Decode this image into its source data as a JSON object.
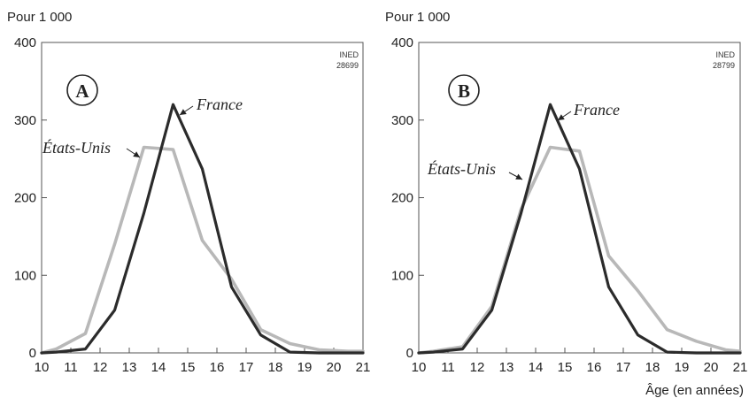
{
  "colors": {
    "france": "#2b2b2b",
    "etats_unis": "#b8b8b8",
    "axis": "#555555"
  },
  "chart_data": [
    {
      "type": "line",
      "panel_label": "A",
      "unit_label": "Pour 1 000",
      "xlabel": "",
      "source_label": "INED",
      "source_number": "28699",
      "x": [
        10,
        11,
        12,
        13,
        14,
        15,
        16,
        17,
        18,
        19,
        20,
        21
      ],
      "ylim": [
        0,
        400
      ],
      "yticks": [
        0,
        100,
        200,
        300,
        400
      ],
      "xticks": [
        10,
        11,
        12,
        13,
        14,
        15,
        16,
        17,
        18,
        19,
        20,
        21
      ],
      "series": [
        {
          "name": "États-Unis",
          "key": "etats_unis",
          "x": [
            10.0,
            10.5,
            11.5,
            12.5,
            13.5,
            14.5,
            15.5,
            16.5,
            17.5,
            18.5,
            19.5,
            20.5,
            21.0
          ],
          "values": [
            0,
            5,
            25,
            140,
            265,
            262,
            145,
            95,
            30,
            12,
            4,
            2,
            2
          ]
        },
        {
          "name": "France",
          "key": "france",
          "x": [
            10.0,
            10.5,
            11.5,
            12.5,
            13.5,
            14.5,
            15.5,
            16.5,
            17.5,
            18.5,
            19.5,
            20.5,
            21.0
          ],
          "values": [
            0,
            1,
            5,
            55,
            180,
            320,
            237,
            85,
            23,
            1,
            0,
            0,
            0
          ]
        }
      ]
    },
    {
      "type": "line",
      "panel_label": "B",
      "unit_label": "Pour 1 000",
      "xlabel": "Âge (en années)",
      "source_label": "INED",
      "source_number": "28799",
      "x": [
        10,
        11,
        12,
        13,
        14,
        15,
        16,
        17,
        18,
        19,
        20,
        21
      ],
      "ylim": [
        0,
        400
      ],
      "yticks": [
        0,
        100,
        200,
        300,
        400
      ],
      "xticks": [
        10,
        11,
        12,
        13,
        14,
        15,
        16,
        17,
        18,
        19,
        20,
        21
      ],
      "series": [
        {
          "name": "États-Unis",
          "key": "etats_unis",
          "x": [
            10.0,
            10.5,
            11.5,
            12.5,
            13.5,
            14.5,
            15.5,
            16.5,
            17.5,
            18.5,
            19.5,
            20.5,
            21.0
          ],
          "values": [
            0,
            2,
            8,
            60,
            185,
            265,
            260,
            125,
            80,
            30,
            15,
            4,
            2
          ]
        },
        {
          "name": "France",
          "key": "france",
          "x": [
            10.0,
            10.5,
            11.5,
            12.5,
            13.5,
            14.5,
            15.5,
            16.5,
            17.5,
            18.5,
            19.5,
            20.5,
            21.0
          ],
          "values": [
            0,
            1,
            5,
            55,
            180,
            320,
            237,
            85,
            23,
            1,
            0,
            0,
            0
          ]
        }
      ]
    }
  ]
}
